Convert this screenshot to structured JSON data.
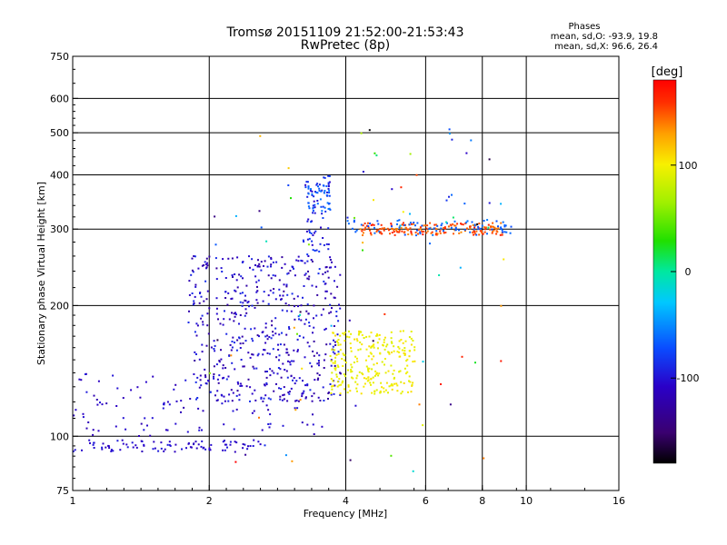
{
  "chart_data": {
    "type": "scatter",
    "title": "Tromsø 20151109 21:52:00-21:53:43",
    "subtitle": "RwPretec (8p)",
    "xlabel": "Frequency [MHz]",
    "ylabel": "Stationary phase Virtual Height [km]",
    "x_scale": "log",
    "y_scale": "log",
    "xlim": [
      1,
      16
    ],
    "ylim": [
      75,
      750
    ],
    "x_ticks": [
      {
        "value": 1,
        "label": "1"
      },
      {
        "value": 2,
        "label": "2"
      },
      {
        "value": 4,
        "label": "4"
      },
      {
        "value": 6,
        "label": "6"
      },
      {
        "value": 8,
        "label": "8"
      },
      {
        "value": 10,
        "label": "10"
      },
      {
        "value": 16,
        "label": "16"
      }
    ],
    "y_ticks": [
      {
        "value": 75,
        "label": "75"
      },
      {
        "value": 100,
        "label": "100"
      },
      {
        "value": 200,
        "label": "200"
      },
      {
        "value": 300,
        "label": "300"
      },
      {
        "value": 400,
        "label": "400"
      },
      {
        "value": 500,
        "label": "500"
      },
      {
        "value": 600,
        "label": "600"
      },
      {
        "value": 750,
        "label": "750"
      }
    ],
    "x_grid": [
      2,
      4,
      6,
      8,
      10
    ],
    "y_grid": [
      100,
      200,
      300,
      400,
      500,
      600
    ],
    "grid": true,
    "legend": {
      "title": "Phases",
      "lines": [
        "mean, sd,O: -93.9, 19.8",
        "mean, sd,X:  96.6, 26.4"
      ]
    },
    "colorbar": {
      "label": "[deg]",
      "vmin": -180,
      "vmax": 180,
      "ticks": [
        {
          "value": 100,
          "label": "100"
        },
        {
          "value": 0,
          "label": "0"
        },
        {
          "value": -100,
          "label": "-100"
        }
      ],
      "colormap": "rainbow"
    },
    "clusters": [
      {
        "name": "E-layer low",
        "f_range": [
          1.0,
          2.6
        ],
        "h_range": [
          92,
          98
        ],
        "phase_range": [
          -115,
          -95
        ],
        "count": 90
      },
      {
        "name": "lower F trace",
        "f_range": [
          1.0,
          3.6
        ],
        "h_range": [
          100,
          140
        ],
        "phase_range": [
          -120,
          -95
        ],
        "count": 110
      },
      {
        "name": "F1 O-mode band",
        "f_range": [
          1.8,
          3.9
        ],
        "h_range": [
          120,
          260
        ],
        "phase_range": [
          -130,
          -85
        ],
        "count": 520
      },
      {
        "name": "O-mode upper",
        "f_range": [
          3.2,
          3.7
        ],
        "h_range": [
          250,
          400
        ],
        "phase_range": [
          -110,
          -75
        ],
        "count": 70
      },
      {
        "name": "cyan cluster",
        "f_range": [
          3.3,
          3.7
        ],
        "h_range": [
          330,
          380
        ],
        "phase_range": [
          -70,
          -55
        ],
        "count": 40
      },
      {
        "name": "X-mode band",
        "f_range": [
          3.7,
          5.7
        ],
        "h_range": [
          125,
          175
        ],
        "phase_range": [
          88,
          108
        ],
        "count": 260
      },
      {
        "name": "F2 X trace",
        "f_range": [
          4.3,
          9.0
        ],
        "h_range": [
          290,
          310
        ],
        "phase_range": [
          135,
          170
        ],
        "count": 170
      },
      {
        "name": "F2 O trace",
        "f_range": [
          4.0,
          9.3
        ],
        "h_range": [
          290,
          315
        ],
        "phase_range": [
          -75,
          -55
        ],
        "count": 80
      },
      {
        "name": "scattered",
        "f_range": [
          2.0,
          9.0
        ],
        "h_range": [
          80,
          520
        ],
        "phase_range": [
          -180,
          180
        ],
        "count": 90
      }
    ]
  }
}
